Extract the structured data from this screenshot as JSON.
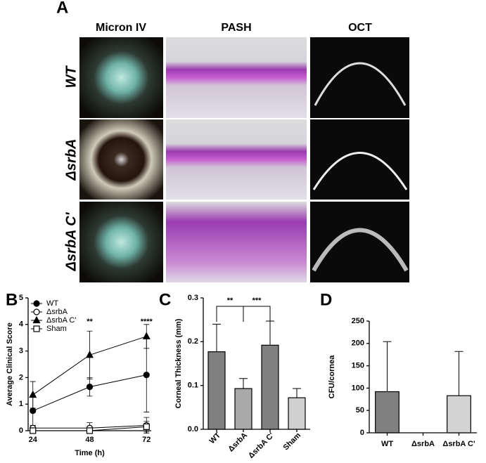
{
  "panels": {
    "a": "A",
    "b": "B",
    "c": "C",
    "d": "D"
  },
  "figure_a": {
    "columns": [
      "Micron IV",
      "PASH",
      "OCT"
    ],
    "rows": [
      "WT",
      "ΔsrbA",
      "ΔsrbA C'"
    ]
  },
  "chart_data": [
    {
      "type": "line",
      "x_label": "Time (h)",
      "y_label": "Average Clinical Score",
      "x": [
        24,
        48,
        72
      ],
      "xlim": [
        22,
        74
      ],
      "xticks": [
        24,
        48,
        72
      ],
      "ylim": [
        0,
        5
      ],
      "yticks": [
        0,
        1,
        2,
        3,
        4,
        5
      ],
      "legend": "upper left",
      "annotations": [
        "**",
        "****"
      ],
      "series": [
        {
          "name": "WT",
          "color": "#000000",
          "marker": "circle",
          "filled": true,
          "values": [
            0.75,
            1.65,
            2.1
          ],
          "errors": [
            0.55,
            0.35,
            1.4
          ]
        },
        {
          "name": "ΔsrbA",
          "color": "#000000",
          "marker": "circle",
          "filled": false,
          "values": [
            0.1,
            0.1,
            0.2
          ],
          "errors": [
            0.1,
            0.2,
            0.3
          ]
        },
        {
          "name": "ΔsrbA C'",
          "color": "#000000",
          "marker": "triangle",
          "filled": true,
          "values": [
            1.35,
            2.85,
            3.55
          ],
          "errors": [
            0.5,
            0.9,
            0.45
          ]
        },
        {
          "name": "Sham",
          "color": "#000000",
          "marker": "square",
          "filled": false,
          "values": [
            0,
            0,
            0.15
          ],
          "errors": [
            0.05,
            0.05,
            0.2
          ]
        }
      ]
    },
    {
      "type": "bar",
      "y_label": "Corneal Thickness (mm)",
      "categories": [
        "WT",
        "ΔsrbA",
        "ΔsrbA C'",
        "Sham"
      ],
      "values": [
        0.177,
        0.093,
        0.192,
        0.072
      ],
      "errors": [
        0.063,
        0.023,
        0.055,
        0.021
      ],
      "colors": [
        "#808080",
        "#a9a9a9",
        "#808080",
        "#d0d0d0"
      ],
      "ylim": [
        0,
        0.3
      ],
      "yticks": [
        {
          "value": 0,
          "label": "0.0"
        },
        0.1,
        0.2,
        0.3
      ],
      "annotations": [
        "**",
        "***"
      ]
    },
    {
      "type": "bar",
      "y_label": "CFU/cornea",
      "categories": [
        "WT",
        "ΔsrbA",
        "ΔsrbA C'"
      ],
      "values": [
        92,
        0,
        83
      ],
      "errors": [
        112,
        null,
        99
      ],
      "colors": [
        "#808080",
        "#a9a9a9",
        "#d3d3d3"
      ],
      "ylim": [
        0,
        250
      ],
      "yticks": [
        0,
        50,
        100,
        150,
        200,
        250
      ]
    }
  ]
}
